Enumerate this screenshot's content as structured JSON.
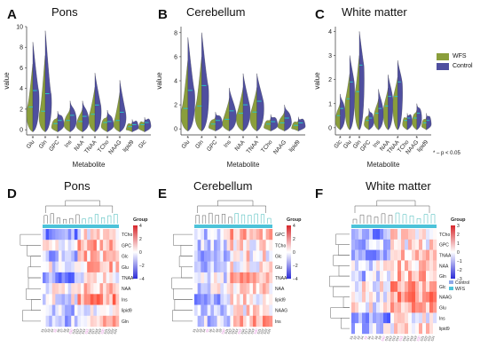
{
  "figure": {
    "letters": [
      "A",
      "B",
      "C",
      "D",
      "E",
      "F"
    ],
    "titles": [
      "Pons",
      "Cerebellum",
      "White matter",
      "Pons",
      "Cerebellum",
      "White matter"
    ],
    "sig_note": "* – p < 0.05"
  },
  "colors": {
    "WFS": "#8a9e3b",
    "Control": "#4f4f9f",
    "mean": "#27c4c4",
    "pink": "#e07ad8"
  },
  "legend_top": {
    "items": [
      {
        "label": "WFS",
        "color": "#8a9e3b"
      },
      {
        "label": "Control",
        "color": "#4f4f9f"
      }
    ]
  },
  "chart_data": [
    {
      "type": "violin",
      "panel": "A",
      "title": "Pons",
      "xlabel": "Metabolite",
      "ylabel": "value",
      "ylim": [
        -0.5,
        10
      ],
      "yticks": [
        0,
        2,
        4,
        6,
        8,
        10
      ],
      "categories": [
        "Glu",
        "Gln",
        "GPC",
        "Ins",
        "NAA",
        "TNAA",
        "TCho",
        "NAAG",
        "lipid9",
        "Glc"
      ],
      "series": [
        {
          "name": "WFS",
          "values": [
            2.2,
            1.8,
            0.6,
            0.9,
            0.8,
            1.5,
            0.7,
            0.9,
            0.3,
            0.5
          ]
        },
        {
          "name": "Control",
          "values": [
            3.8,
            3.5,
            0.9,
            1.4,
            1.3,
            2.4,
            0.8,
            1.7,
            0.5,
            0.7
          ]
        }
      ],
      "maxes": [
        8.5,
        9.6,
        1.8,
        2.8,
        2.8,
        5.5,
        1.9,
        4.8,
        1.0,
        1.2
      ],
      "significant": [
        "Glu",
        "Gln",
        "GPC",
        "Ins",
        "NAA",
        "TNAA",
        "TCho",
        "NAAG"
      ]
    },
    {
      "type": "violin",
      "panel": "B",
      "title": "Cerebellum",
      "xlabel": "Metabolite",
      "ylabel": "value",
      "ylim": [
        -0.5,
        8.5
      ],
      "yticks": [
        0,
        2,
        4,
        6,
        8
      ],
      "categories": [
        "Glu",
        "Gln",
        "GPC",
        "Ins",
        "NAA",
        "TNAA",
        "TCho",
        "NAAG",
        "lipid9"
      ],
      "series": [
        {
          "name": "WFS",
          "values": [
            1.7,
            1.9,
            0.4,
            0.8,
            1.3,
            1.4,
            0.4,
            0.5,
            0.3
          ]
        },
        {
          "name": "Control",
          "values": [
            3.2,
            3.6,
            0.7,
            1.5,
            2.0,
            2.3,
            0.6,
            0.9,
            0.5
          ]
        }
      ],
      "maxes": [
        7.6,
        8.0,
        1.4,
        3.4,
        4.6,
        4.6,
        1.2,
        2.0,
        1.0
      ],
      "significant": [
        "Glu",
        "Gln",
        "GPC",
        "Ins",
        "NAA",
        "TNAA"
      ]
    },
    {
      "type": "violin",
      "panel": "C",
      "title": "White matter",
      "xlabel": "Metabolite",
      "ylabel": "value",
      "ylim": [
        -0.3,
        4.2
      ],
      "yticks": [
        0,
        1,
        2,
        3,
        4
      ],
      "categories": [
        "Glc",
        "Glu",
        "Gln",
        "GPC",
        "Ins",
        "NAA",
        "TNAA",
        "TCho",
        "NAAG",
        "lipid9"
      ],
      "series": [
        {
          "name": "WFS",
          "values": [
            0.5,
            1.2,
            1.5,
            0.3,
            0.6,
            0.9,
            1.3,
            0.3,
            0.4,
            0.2
          ]
        },
        {
          "name": "Control",
          "values": [
            0.8,
            1.9,
            2.6,
            0.4,
            0.8,
            1.3,
            1.9,
            0.4,
            0.6,
            0.3
          ]
        }
      ],
      "maxes": [
        1.4,
        3.0,
        4.0,
        0.8,
        1.6,
        2.2,
        2.8,
        0.6,
        1.0,
        0.6
      ],
      "significant": [
        "Glc",
        "Glu",
        "Gln",
        "TNAA",
        "NAAG"
      ]
    },
    {
      "type": "heatmap",
      "panel": "D",
      "title": "Pons",
      "rows": [
        "TCho",
        "GPC",
        "Glc",
        "Glu",
        "TNAA",
        "NAA",
        "Ins",
        "lipid9",
        "Gln"
      ],
      "colorbar_ticks": [
        "4",
        "2",
        "0",
        "−2",
        "−4"
      ],
      "legend_title": "Group",
      "columns": 24
    },
    {
      "type": "heatmap",
      "panel": "E",
      "title": "Cerebellum",
      "rows": [
        "GPC",
        "TCho",
        "Glc",
        "Glu",
        "TNAA",
        "NAA",
        "lipid9",
        "NAAG",
        "Ins"
      ],
      "colorbar_ticks": [
        "4",
        "2",
        "0",
        "−2",
        "−4"
      ],
      "legend_title": "Group",
      "columns": 24
    },
    {
      "type": "heatmap",
      "panel": "F",
      "title": "White matter",
      "rows": [
        "TCho",
        "GPC",
        "TNAA",
        "NAA",
        "Gln",
        "Glc",
        "NAAG",
        "Glu",
        "Ins",
        "lipid9"
      ],
      "colorbar_ticks": [
        "3",
        "2",
        "1",
        "0",
        "−1",
        "−2",
        "−3"
      ],
      "legend_title": "Group",
      "legend_items": [
        "Control",
        "WFS"
      ],
      "columns": 24
    }
  ]
}
